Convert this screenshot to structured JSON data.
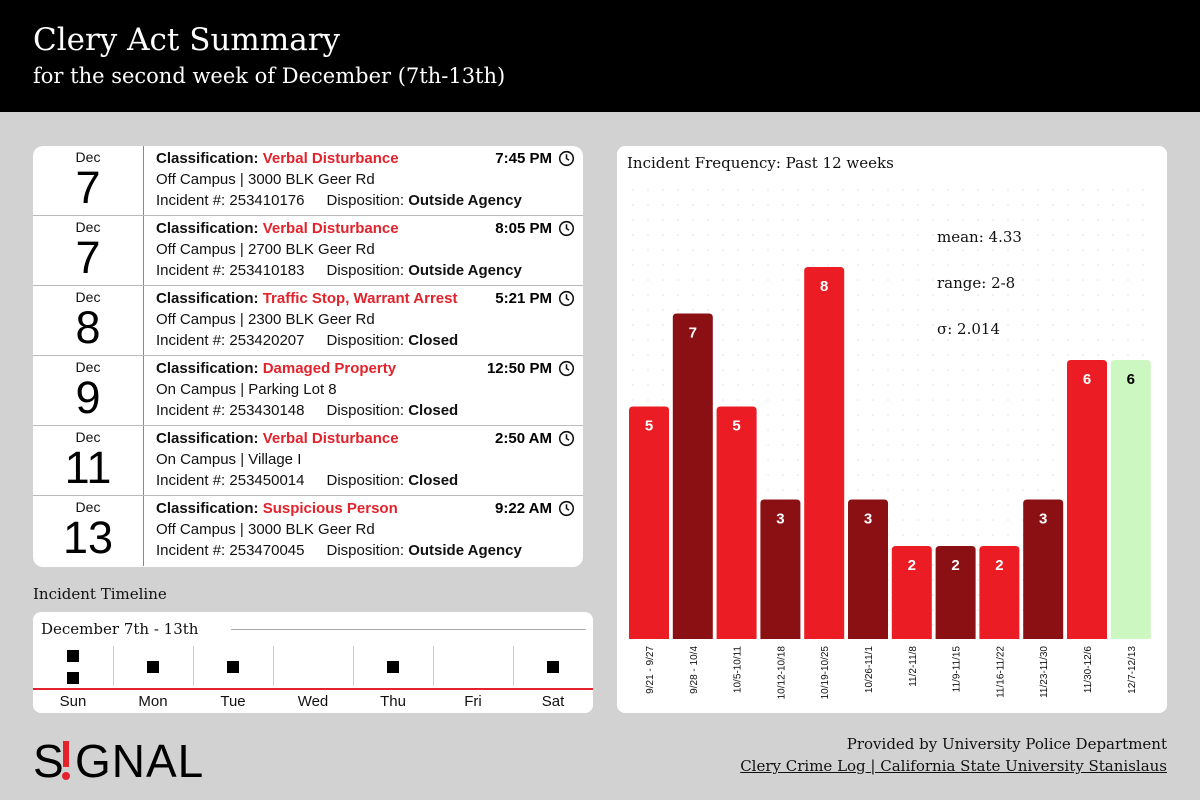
{
  "header": {
    "title": "Clery Act Summary",
    "subtitle": "for the second week of December (7th-13th)"
  },
  "labels": {
    "classification": "Classification:",
    "incident": "Incident #:",
    "disposition": "Disposition:"
  },
  "incidents": [
    {
      "month": "Dec",
      "day": "7",
      "classification": "Verbal Disturbance",
      "time": "7:45 PM",
      "location": "Off Campus | 3000 BLK Geer Rd",
      "incident_no": "253410176",
      "disposition": "Outside Agency"
    },
    {
      "month": "Dec",
      "day": "7",
      "classification": "Verbal Disturbance",
      "time": "8:05 PM",
      "location": "Off Campus | 2700 BLK Geer Rd",
      "incident_no": "253410183",
      "disposition": "Outside Agency"
    },
    {
      "month": "Dec",
      "day": "8",
      "classification": "Traffic Stop, Warrant Arrest",
      "time": "5:21 PM",
      "location": "Off Campus | 2300 BLK Geer Rd",
      "incident_no": "253420207",
      "disposition": "Closed"
    },
    {
      "month": "Dec",
      "day": "9",
      "classification": "Damaged Property",
      "time": "12:50 PM",
      "location": "On Campus | Parking Lot 8",
      "incident_no": "253430148",
      "disposition": "Closed"
    },
    {
      "month": "Dec",
      "day": "11",
      "classification": "Verbal Disturbance",
      "time": "2:50 AM",
      "location": "On Campus | Village I",
      "incident_no": "253450014",
      "disposition": "Closed"
    },
    {
      "month": "Dec",
      "day": "13",
      "classification": "Suspicious Person",
      "time": "9:22 AM",
      "location": "Off Campus | 3000 BLK Geer Rd",
      "incident_no": "253470045",
      "disposition": "Outside Agency"
    }
  ],
  "timeline": {
    "label": "Incident Timeline",
    "range": "December 7th - 13th",
    "days": [
      {
        "name": "Sun",
        "count": 2
      },
      {
        "name": "Mon",
        "count": 1
      },
      {
        "name": "Tue",
        "count": 1
      },
      {
        "name": "Wed",
        "count": 0
      },
      {
        "name": "Thu",
        "count": 1
      },
      {
        "name": "Fri",
        "count": 0
      },
      {
        "name": "Sat",
        "count": 1
      }
    ]
  },
  "chart_data": {
    "type": "bar",
    "title": "Incident Frequency: Past 12 weeks",
    "categories": [
      "9/21 - 9/27",
      "9/28 - 10/4",
      "10/5-10/11",
      "10/12-10/18",
      "10/19-10/25",
      "10/26-11/1",
      "11/2-11/8",
      "11/9-11/15",
      "11/16-11/22",
      "11/23-11/30",
      "11/30-12/6",
      "12/7-12/13"
    ],
    "values": [
      5,
      7,
      5,
      3,
      8,
      3,
      2,
      2,
      2,
      3,
      6,
      6
    ],
    "stats": [
      "mean: 4.33",
      "range: 2-8",
      "σ: 2.014"
    ],
    "bar_colors": [
      "#ec1c24",
      "#8b1013",
      "#ec1c24",
      "#8b1013",
      "#ec1c24",
      "#8b1013",
      "#ec1c24",
      "#8b1013",
      "#ec1c24",
      "#8b1013",
      "#ec1c24",
      "#ccf7c0"
    ],
    "ylim": [
      0,
      8
    ],
    "grid": "dotted background"
  },
  "logo": {
    "text": "SIGNAL"
  },
  "footer": {
    "line1": "Provided by University Police Department",
    "line2": "Clery Crime Log | California State University Stanislaus"
  },
  "colors": {
    "accent": "#e3232c",
    "dark_red": "#8b1013",
    "highlight": "#ccf7c0"
  }
}
